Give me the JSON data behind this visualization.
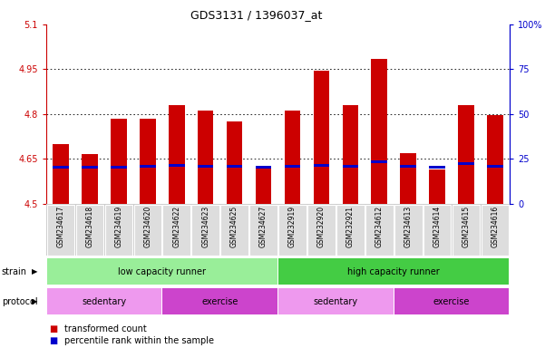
{
  "title": "GDS3131 / 1396037_at",
  "samples": [
    "GSM234617",
    "GSM234618",
    "GSM234619",
    "GSM234620",
    "GSM234622",
    "GSM234623",
    "GSM234625",
    "GSM234627",
    "GSM232919",
    "GSM232920",
    "GSM232921",
    "GSM234612",
    "GSM234613",
    "GSM234614",
    "GSM234615",
    "GSM234616"
  ],
  "red_values": [
    4.7,
    4.665,
    4.785,
    4.785,
    4.83,
    4.81,
    4.775,
    4.625,
    4.81,
    4.945,
    4.83,
    4.985,
    4.67,
    4.615,
    4.83,
    4.795
  ],
  "blue_positions": [
    4.617,
    4.617,
    4.617,
    4.62,
    4.622,
    4.62,
    4.62,
    4.617,
    4.62,
    4.622,
    4.62,
    4.635,
    4.62,
    4.617,
    4.628,
    4.62
  ],
  "blue_heights": [
    0.01,
    0.01,
    0.01,
    0.01,
    0.01,
    0.01,
    0.01,
    0.01,
    0.01,
    0.01,
    0.01,
    0.01,
    0.01,
    0.01,
    0.01,
    0.01
  ],
  "ymin": 4.5,
  "ymax": 5.1,
  "yticks_left": [
    4.5,
    4.65,
    4.8,
    4.95,
    5.1
  ],
  "yticks_right_vals": [
    0,
    25,
    50,
    75,
    100
  ],
  "yticks_right_pos": [
    4.5,
    4.65,
    4.8,
    4.95,
    5.1
  ],
  "bar_color": "#cc0000",
  "blue_color": "#0000cc",
  "left_tick_color": "#cc0000",
  "right_tick_color": "#0000cc",
  "grid_lines": [
    4.65,
    4.8,
    4.95
  ],
  "strain_groups": [
    {
      "label": "low capacity runner",
      "start": 0,
      "end": 8,
      "color": "#99ee99"
    },
    {
      "label": "high capacity runner",
      "start": 8,
      "end": 16,
      "color": "#44cc44"
    }
  ],
  "protocol_groups": [
    {
      "label": "sedentary",
      "start": 0,
      "end": 4,
      "color": "#ee99ee"
    },
    {
      "label": "exercise",
      "start": 4,
      "end": 8,
      "color": "#cc44cc"
    },
    {
      "label": "sedentary",
      "start": 8,
      "end": 12,
      "color": "#ee99ee"
    },
    {
      "label": "exercise",
      "start": 12,
      "end": 16,
      "color": "#cc44cc"
    }
  ],
  "legend_red_label": "transformed count",
  "legend_blue_label": "percentile rank within the sample",
  "bar_width": 0.55
}
